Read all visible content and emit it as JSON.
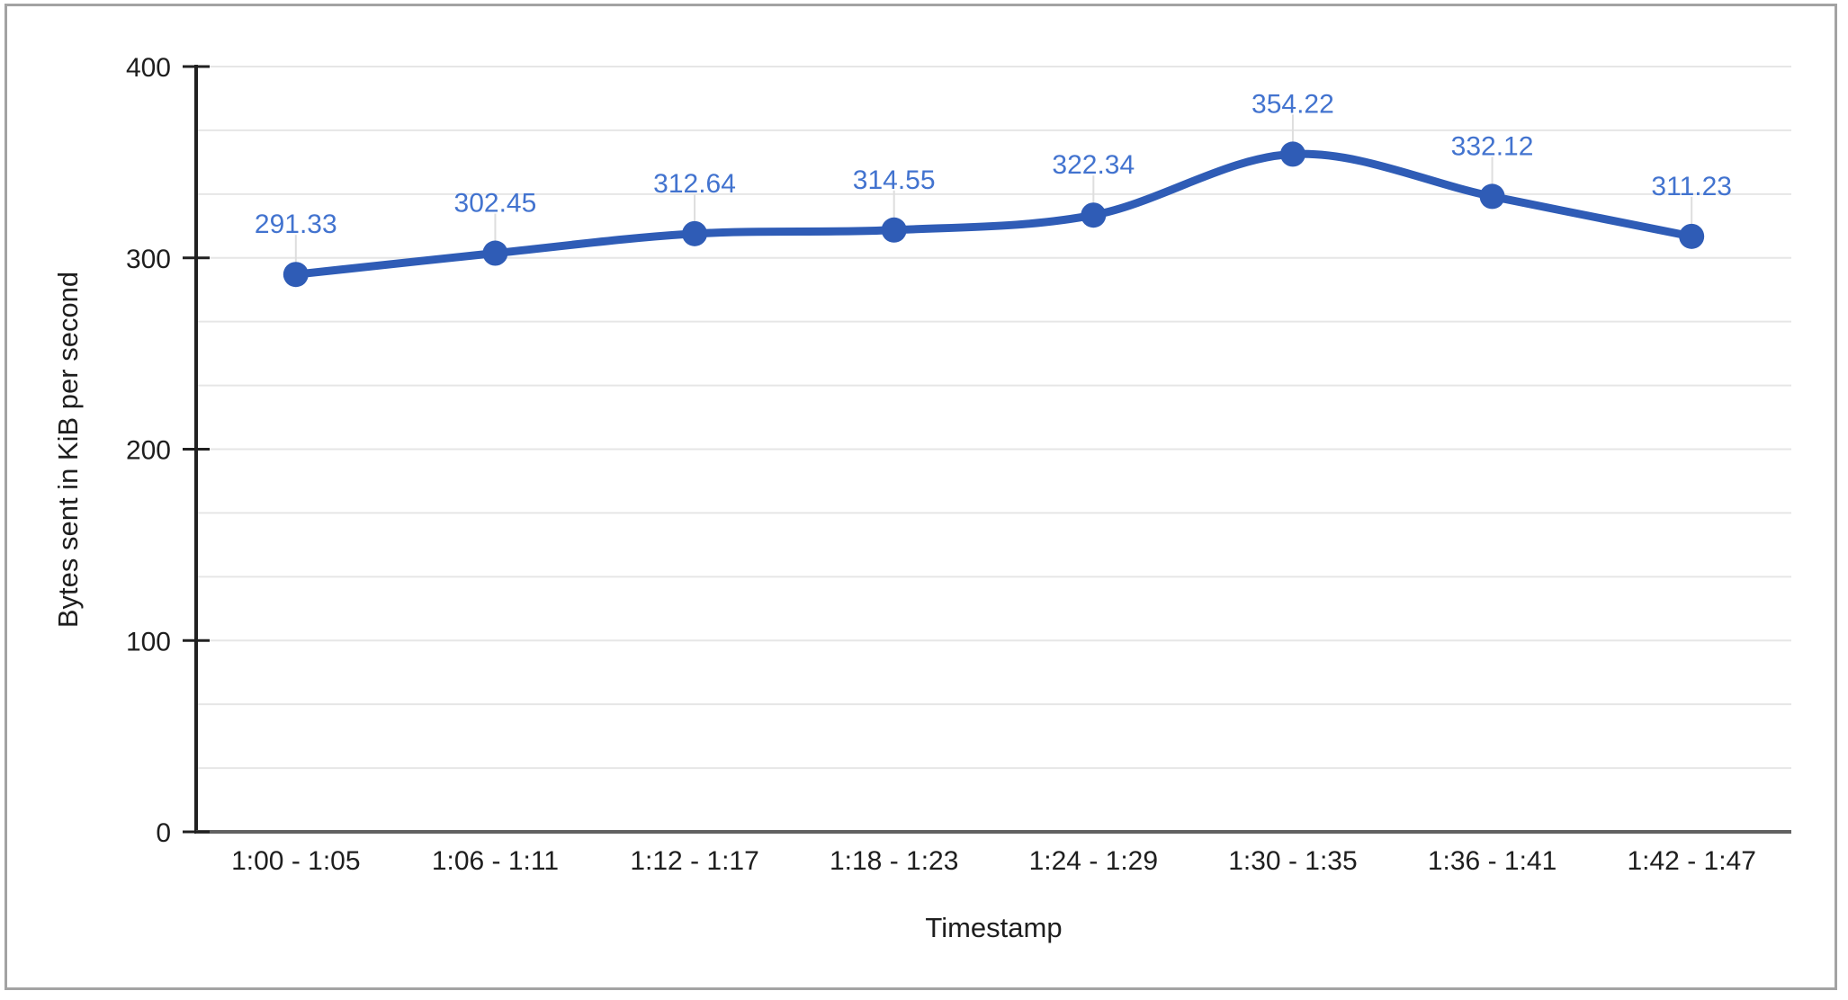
{
  "window": {
    "background": "#ffffff",
    "border_color": "#a3a3a3"
  },
  "chart_data": {
    "type": "line",
    "smooth": true,
    "title": "",
    "xlabel": "Timestamp",
    "ylabel": "Bytes sent in KiB per second",
    "categories": [
      "1:00 - 1:05",
      "1:06 - 1:11",
      "1:12 - 1:17",
      "1:18 - 1:23",
      "1:24 - 1:29",
      "1:30 - 1:35",
      "1:36 - 1:41",
      "1:42 - 1:47"
    ],
    "values": [
      291.33,
      302.45,
      312.64,
      314.55,
      322.34,
      354.22,
      332.12,
      311.23
    ],
    "data_labels": [
      "291.33",
      "302.45",
      "312.64",
      "314.55",
      "322.34",
      "354.22",
      "332.12",
      "311.23"
    ],
    "ylim": [
      0,
      400
    ],
    "yticks": [
      0,
      100,
      200,
      300,
      400
    ],
    "minor_divisions_per_interval": 3,
    "grid": true,
    "legend": "none",
    "colors": {
      "line": "#2f5cb6",
      "marker": "#2f5cb6",
      "data_label": "#4273cf",
      "gridline": "#e6e6e6",
      "annotation_stem": "#dedede",
      "y_axis_line": "#212121",
      "baseline": "#616161",
      "tick_text": "#1e1e1e",
      "category_text": "#1e1e1e"
    }
  }
}
